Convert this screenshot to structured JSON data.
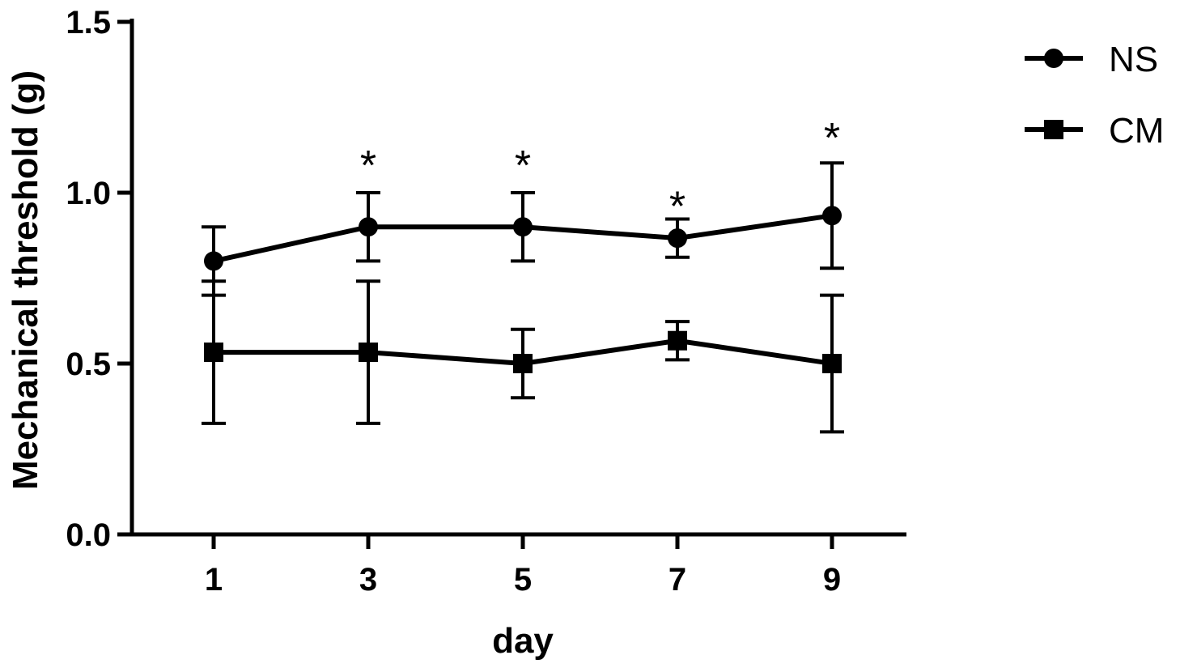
{
  "chart_data": {
    "type": "line",
    "xlabel": "day",
    "ylabel": "Mechanical threshold (g)",
    "x": [
      1,
      3,
      5,
      7,
      9
    ],
    "x_tick_labels": [
      "1",
      "3",
      "5",
      "7",
      "9"
    ],
    "ylim": [
      0,
      1.5
    ],
    "y_ticks": [
      0.0,
      0.5,
      1.0,
      1.5
    ],
    "y_tick_labels": [
      "0.0",
      "0.5",
      "1.0",
      "1.5"
    ],
    "series": [
      {
        "name": "NS",
        "marker": "circle",
        "values": [
          0.8,
          0.9,
          0.9,
          0.867,
          0.933
        ],
        "err_upper": [
          0.9,
          1.0,
          1.0,
          0.923,
          1.087
        ],
        "err_lower": [
          0.7,
          0.8,
          0.8,
          0.811,
          0.779
        ]
      },
      {
        "name": "CM",
        "marker": "square",
        "values": [
          0.533,
          0.533,
          0.5,
          0.567,
          0.5
        ],
        "err_upper": [
          0.741,
          0.741,
          0.6,
          0.623,
          0.7
        ],
        "err_lower": [
          0.325,
          0.325,
          0.4,
          0.511,
          0.3
        ]
      }
    ],
    "annotations": [
      {
        "x": 3,
        "y": 1.1,
        "text": "*"
      },
      {
        "x": 5,
        "y": 1.1,
        "text": "*"
      },
      {
        "x": 7,
        "y": 0.98,
        "text": "*"
      },
      {
        "x": 9,
        "y": 1.18,
        "text": "*"
      }
    ],
    "legend": {
      "position": "top-right",
      "entries": [
        "NS",
        "CM"
      ]
    },
    "grid": false,
    "colors": {
      "line": "#000000",
      "background": "#ffffff"
    }
  }
}
